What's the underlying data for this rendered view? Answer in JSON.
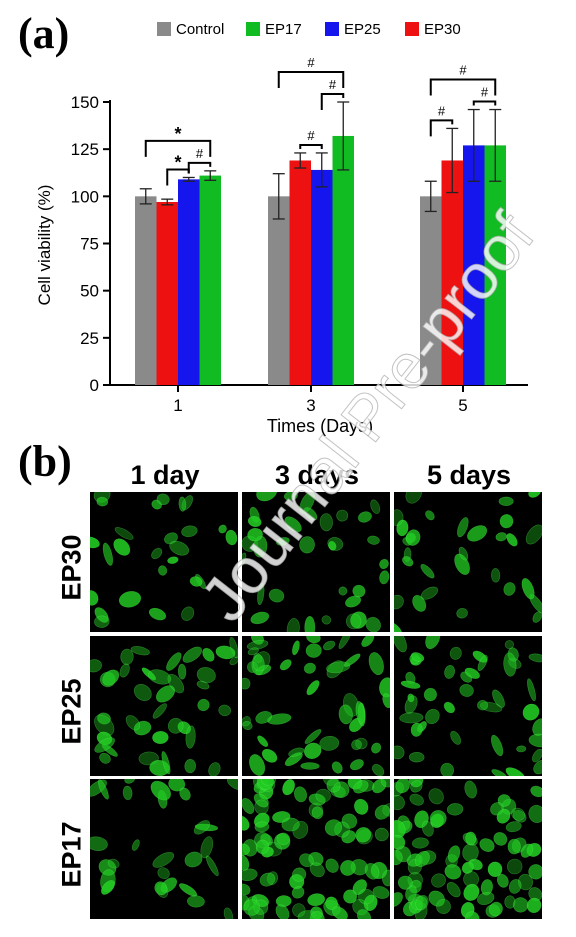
{
  "panel_a_label": "(a)",
  "panel_b_label": "(b)",
  "watermark": "Journal Pre-proof",
  "chart_data": {
    "type": "bar",
    "xlabel": "Times (Days)",
    "ylabel": "Cell viability (%)",
    "ylim": [
      0,
      150
    ],
    "yticks": [
      0,
      25,
      50,
      75,
      100,
      125,
      150
    ],
    "categories": [
      "1",
      "3",
      "5"
    ],
    "legend_placement": "top",
    "legend_order": [
      "Control",
      "EP17",
      "EP25",
      "EP30"
    ],
    "series": [
      {
        "name": "Control",
        "color": "#8a8a8a",
        "values": [
          100,
          100,
          100
        ],
        "errors": [
          4,
          12,
          8
        ]
      },
      {
        "name": "EP30",
        "color": "#ee1111",
        "values": [
          97,
          119,
          119
        ],
        "errors": [
          1.5,
          4,
          17
        ]
      },
      {
        "name": "EP25",
        "color": "#1515ee",
        "values": [
          109,
          114,
          127
        ],
        "errors": [
          1,
          9,
          19
        ]
      },
      {
        "name": "EP17",
        "color": "#11bb22",
        "values": [
          111,
          132,
          127
        ],
        "errors": [
          2.5,
          18,
          19
        ]
      }
    ],
    "brackets": [
      {
        "day": "1",
        "from": "EP30",
        "to": "EP25",
        "label": "*"
      },
      {
        "day": "1",
        "from": "EP25",
        "to": "EP17",
        "label": "#"
      },
      {
        "day": "1",
        "from": "Control",
        "to": "EP17",
        "label": "*"
      },
      {
        "day": "3",
        "from": "EP30",
        "to": "EP25",
        "label": "#"
      },
      {
        "day": "3",
        "from": "EP25",
        "to": "EP17",
        "label": "#"
      },
      {
        "day": "3",
        "from": "Control",
        "to": "EP17",
        "label": "#"
      },
      {
        "day": "5",
        "from": "Control",
        "to": "EP30",
        "label": "#"
      },
      {
        "day": "5",
        "from": "EP25",
        "to": "EP17",
        "label": "#"
      },
      {
        "day": "5",
        "from": "Control",
        "to": "EP17",
        "label": "#"
      }
    ]
  },
  "micrographs": {
    "columns": [
      "1 day",
      "3 days",
      "5 days"
    ],
    "rows": [
      "EP30",
      "EP25",
      "EP17"
    ],
    "cell_color": "#22cc22"
  }
}
